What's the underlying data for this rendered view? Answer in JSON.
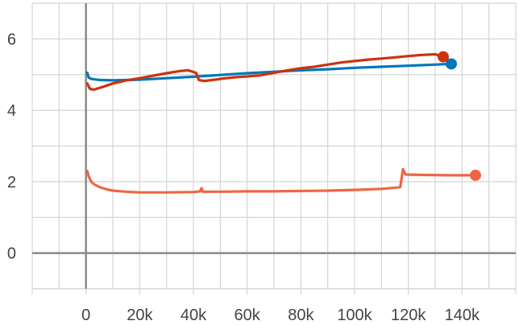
{
  "chart_data": {
    "type": "line",
    "title": "",
    "xlabel": "",
    "ylabel": "",
    "xlim": [
      -20000,
      160000
    ],
    "ylim": [
      -1,
      7
    ],
    "grid": true,
    "x_ticks": [
      0,
      20000,
      40000,
      60000,
      80000,
      100000,
      120000,
      140000
    ],
    "x_tick_labels": [
      "0",
      "20k",
      "40k",
      "60k",
      "80k",
      "100k",
      "120k",
      "140k"
    ],
    "y_ticks": [
      0,
      2,
      4,
      6
    ],
    "y_tick_labels": [
      "0",
      "2",
      "4",
      "6"
    ],
    "series": [
      {
        "color": "#0077bb",
        "end_marker": true,
        "points": [
          [
            500,
            5.05
          ],
          [
            1000,
            4.92
          ],
          [
            2000,
            4.88
          ],
          [
            5000,
            4.85
          ],
          [
            10000,
            4.84
          ],
          [
            20000,
            4.86
          ],
          [
            30000,
            4.9
          ],
          [
            40000,
            4.94
          ],
          [
            50000,
            4.99
          ],
          [
            60000,
            5.04
          ],
          [
            70000,
            5.08
          ],
          [
            80000,
            5.12
          ],
          [
            90000,
            5.15
          ],
          [
            100000,
            5.19
          ],
          [
            110000,
            5.22
          ],
          [
            120000,
            5.25
          ],
          [
            130000,
            5.28
          ],
          [
            136000,
            5.3
          ]
        ]
      },
      {
        "color": "#cc3311",
        "end_marker": true,
        "points": [
          [
            500,
            4.75
          ],
          [
            1500,
            4.6
          ],
          [
            3000,
            4.58
          ],
          [
            6000,
            4.65
          ],
          [
            10000,
            4.75
          ],
          [
            15000,
            4.84
          ],
          [
            20000,
            4.9
          ],
          [
            25000,
            4.97
          ],
          [
            30000,
            5.04
          ],
          [
            35000,
            5.1
          ],
          [
            38000,
            5.12
          ],
          [
            41000,
            5.05
          ],
          [
            42000,
            4.85
          ],
          [
            44000,
            4.82
          ],
          [
            48000,
            4.86
          ],
          [
            52000,
            4.9
          ],
          [
            56000,
            4.93
          ],
          [
            60000,
            4.95
          ],
          [
            65000,
            4.98
          ],
          [
            70000,
            5.05
          ],
          [
            75000,
            5.12
          ],
          [
            80000,
            5.18
          ],
          [
            85000,
            5.22
          ],
          [
            90000,
            5.28
          ],
          [
            95000,
            5.34
          ],
          [
            100000,
            5.38
          ],
          [
            105000,
            5.42
          ],
          [
            110000,
            5.45
          ],
          [
            115000,
            5.48
          ],
          [
            120000,
            5.52
          ],
          [
            125000,
            5.55
          ],
          [
            130000,
            5.57
          ],
          [
            133000,
            5.5
          ]
        ]
      },
      {
        "color": "#ee6644",
        "end_marker": true,
        "points": [
          [
            500,
            2.3
          ],
          [
            1000,
            2.15
          ],
          [
            2000,
            2.0
          ],
          [
            3000,
            1.93
          ],
          [
            5000,
            1.85
          ],
          [
            8000,
            1.78
          ],
          [
            10000,
            1.75
          ],
          [
            15000,
            1.72
          ],
          [
            20000,
            1.7
          ],
          [
            30000,
            1.7
          ],
          [
            40000,
            1.71
          ],
          [
            42500,
            1.73
          ],
          [
            43000,
            1.82
          ],
          [
            43500,
            1.72
          ],
          [
            50000,
            1.72
          ],
          [
            60000,
            1.73
          ],
          [
            70000,
            1.73
          ],
          [
            80000,
            1.74
          ],
          [
            90000,
            1.75
          ],
          [
            100000,
            1.77
          ],
          [
            110000,
            1.8
          ],
          [
            115000,
            1.83
          ],
          [
            117000,
            1.85
          ],
          [
            118000,
            2.35
          ],
          [
            119000,
            2.2
          ],
          [
            125000,
            2.19
          ],
          [
            135000,
            2.18
          ],
          [
            145000,
            2.18
          ]
        ]
      }
    ]
  }
}
